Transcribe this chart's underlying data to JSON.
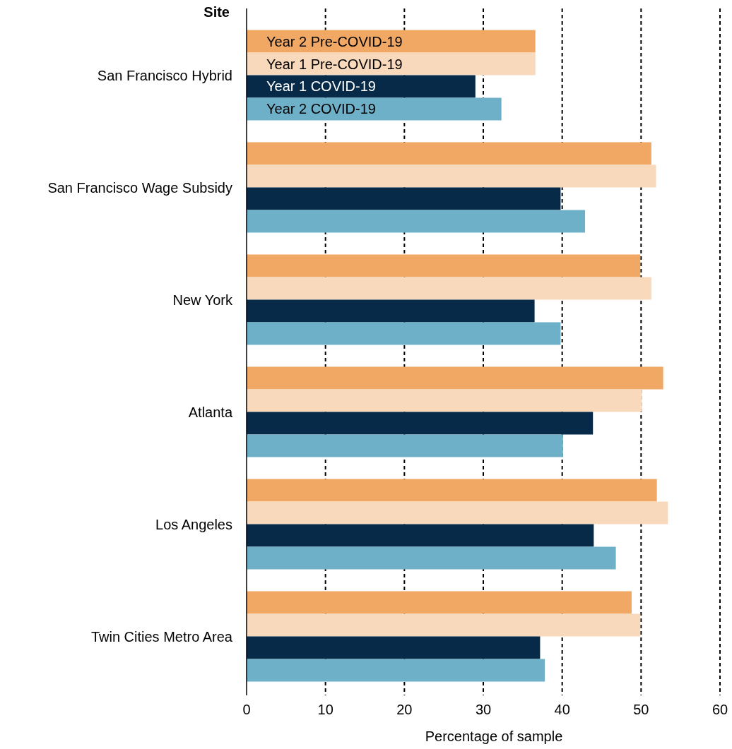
{
  "chart_data": {
    "type": "bar",
    "orientation": "horizontal",
    "ylabel": "Site",
    "xlabel": "Percentage of sample",
    "categories": [
      "San Francisco Hybrid",
      "San Francisco Wage Subsidy",
      "New York",
      "Atlanta",
      "Los Angeles",
      "Twin Cities Metro Area"
    ],
    "series": [
      {
        "name": "Year 2 Pre-COVID-19",
        "color": "#f0a864",
        "values": [
          36.6,
          51.3,
          49.9,
          52.8,
          52.0,
          48.8
        ]
      },
      {
        "name": "Year 1 Pre-COVID-19",
        "color": "#f8d9bc",
        "values": [
          36.6,
          51.9,
          51.3,
          50.1,
          53.4,
          49.9
        ]
      },
      {
        "name": "Year 1 COVID-19",
        "color": "#062a48",
        "values": [
          29.0,
          39.8,
          36.5,
          43.9,
          44.0,
          37.2
        ]
      },
      {
        "name": "Year 2 COVID-19",
        "color": "#6fb0c9",
        "values": [
          32.3,
          42.9,
          39.8,
          40.1,
          46.8,
          37.8
        ]
      }
    ],
    "xlim": [
      0,
      60
    ],
    "xticks": [
      0,
      10,
      20,
      30,
      40,
      50,
      60
    ],
    "grid": "x"
  }
}
